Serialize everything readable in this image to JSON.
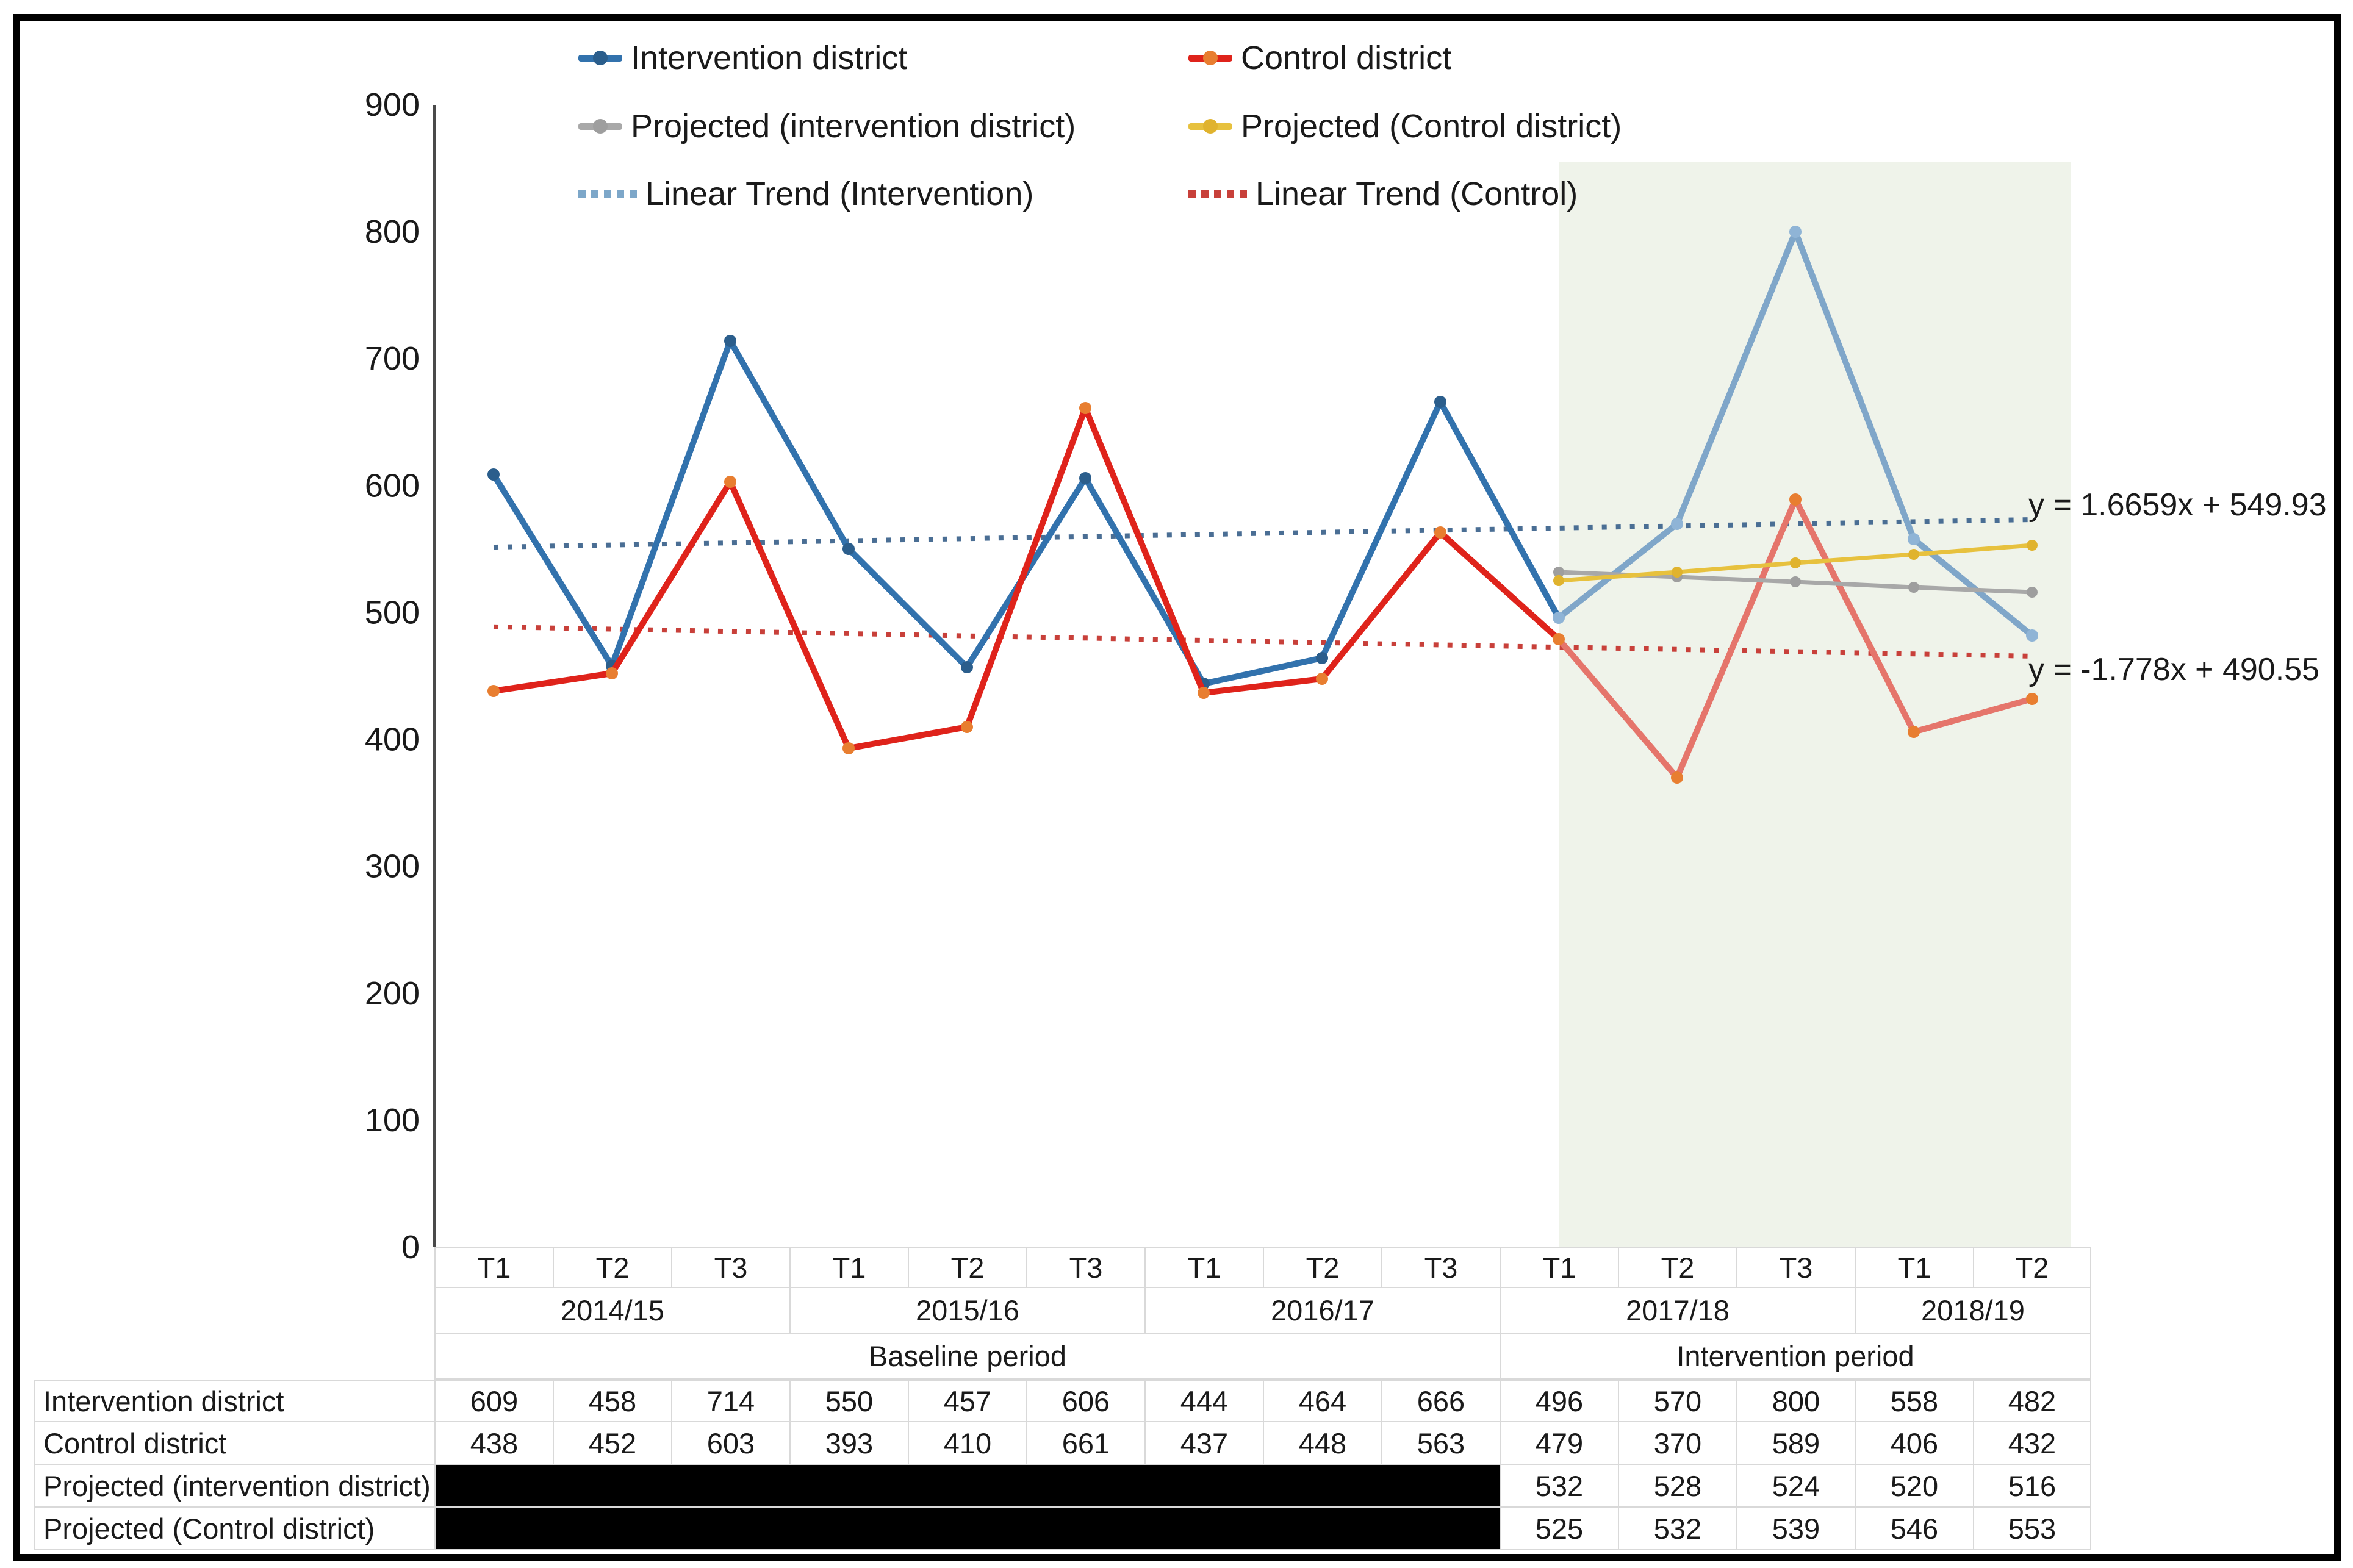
{
  "legend": {
    "items": [
      {
        "label": "Intervention district",
        "type": "line",
        "color": "#3272AD",
        "dot": "#2B5E8C"
      },
      {
        "label": "Control district",
        "type": "line",
        "color": "#DF231B",
        "dot": "#E87E30"
      },
      {
        "label": "Projected (intervention district)",
        "type": "line",
        "color": "#A8A8A8",
        "dot": "#9E9E9E"
      },
      {
        "label": "Projected (Control district)",
        "type": "line",
        "color": "#E7C13E",
        "dot": "#E0B32E"
      },
      {
        "label": "Linear Trend (Intervention)",
        "type": "dots",
        "color": "#7DA7C9"
      },
      {
        "label": "Linear Trend (Control)",
        "type": "dots",
        "color": "#C8403A"
      }
    ]
  },
  "chart_data": {
    "type": "line",
    "categories": [
      "2014/15 T1",
      "2014/15 T2",
      "2014/15 T3",
      "2015/16 T1",
      "2015/16 T2",
      "2015/16 T3",
      "2016/17 T1",
      "2016/17 T2",
      "2016/17 T3",
      "2017/18 T1",
      "2017/18 T2",
      "2017/18 T3",
      "2018/19 T1",
      "2018/19 T2"
    ],
    "ylim": [
      0,
      900
    ],
    "ytick_step": 100,
    "yticks": [
      "900",
      "800",
      "700",
      "600",
      "500",
      "400",
      "300",
      "200",
      "100",
      "0"
    ],
    "grid": false,
    "legend_position": "top",
    "series": [
      {
        "name": "Intervention district",
        "values": [
          609,
          458,
          714,
          550,
          457,
          606,
          444,
          464,
          666,
          496,
          570,
          800,
          558,
          482
        ],
        "split_index": 9,
        "color": "#3272AD",
        "color_intervention_period": "#7FA6C9",
        "marker_color": "#2B5E8C",
        "marker_color_intervention_period": "#8FB4D6"
      },
      {
        "name": "Control district",
        "values": [
          438,
          452,
          603,
          393,
          410,
          661,
          437,
          448,
          563,
          479,
          370,
          589,
          406,
          432
        ],
        "split_index": 9,
        "color": "#DF231B",
        "color_intervention_period": "#E5756B",
        "marker_color": "#E87E30",
        "marker_color_intervention_period": "#E87E30"
      },
      {
        "name": "Projected (intervention district)",
        "values": [
          null,
          null,
          null,
          null,
          null,
          null,
          null,
          null,
          null,
          532,
          528,
          524,
          520,
          516
        ],
        "color": "#A8A8A8",
        "marker_color": "#9E9E9E"
      },
      {
        "name": "Projected (Control district)",
        "values": [
          null,
          null,
          null,
          null,
          null,
          null,
          null,
          null,
          null,
          525,
          532,
          539,
          546,
          553
        ],
        "color": "#E7C13E",
        "marker_color": "#E0B32E"
      }
    ],
    "trendlines": [
      {
        "label": "y = 1.6659x + 549.93",
        "slope": 1.6659,
        "intercept": 549.93,
        "color": "#4A6E94"
      },
      {
        "label": "y = -1.778x + 490.55",
        "slope": -1.778,
        "intercept": 490.55,
        "color": "#C8403A"
      }
    ],
    "highlight_region": {
      "start_category_index": 9,
      "color": "#EFF3EA",
      "meaning": "Intervention period"
    }
  },
  "table": {
    "tick_labels": [
      "T1",
      "T2",
      "T3",
      "T1",
      "T2",
      "T3",
      "T1",
      "T2",
      "T3",
      "T1",
      "T2",
      "T3",
      "T1",
      "T2"
    ],
    "year_groups": [
      {
        "label": "2014/15",
        "span": 3
      },
      {
        "label": "2015/16",
        "span": 3
      },
      {
        "label": "2016/17",
        "span": 3
      },
      {
        "label": "2017/18",
        "span": 3
      },
      {
        "label": "2018/19",
        "span": 2
      }
    ],
    "period_groups": [
      {
        "label": "Baseline period",
        "span": 9
      },
      {
        "label": "Intervention period",
        "span": 5
      }
    ],
    "rows": [
      {
        "label": "Intervention district",
        "values": [
          "609",
          "458",
          "714",
          "550",
          "457",
          "606",
          "444",
          "464",
          "666",
          "496",
          "570",
          "800",
          "558",
          "482"
        ]
      },
      {
        "label": "Control district",
        "values": [
          "438",
          "452",
          "603",
          "393",
          "410",
          "661",
          "437",
          "448",
          "563",
          "479",
          "370",
          "589",
          "406",
          "432"
        ]
      },
      {
        "label": "Projected (intervention district)",
        "redacted_cols": 9,
        "values": [
          "532",
          "528",
          "524",
          "520",
          "516"
        ]
      },
      {
        "label": "Projected (Control district)",
        "redacted_cols": 9,
        "values": [
          "525",
          "532",
          "539",
          "546",
          "553"
        ]
      }
    ]
  },
  "colors": {
    "frame": "#000000",
    "axis_line": "#4a4a4a",
    "table_grid": "#d9d9d9",
    "text": "#1a1a1a",
    "highlight": "#EFF3EA"
  }
}
